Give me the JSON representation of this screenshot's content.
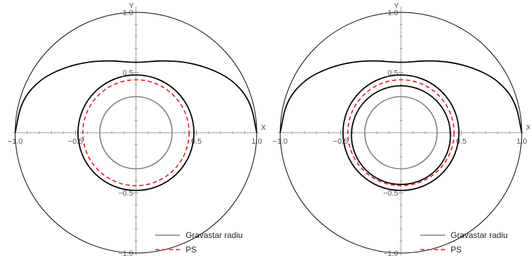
{
  "chart_data": [
    {
      "type": "line",
      "xlabel": "X",
      "ylabel": "Y",
      "xlim": [
        -1.0,
        1.0
      ],
      "ylim": [
        -1.0,
        1.0
      ],
      "xticks": [
        -1.0,
        -0.5,
        0.5,
        1.0
      ],
      "yticks": [
        -1.0,
        -0.5,
        0.5,
        1.0
      ],
      "xtick_labels": [
        "−1.0",
        "−0.5",
        "0.5",
        "1.0"
      ],
      "ytick_labels": [
        "−1.0",
        "−0.5",
        "0.5",
        "1.0"
      ],
      "legend": {
        "position": "bottom-right",
        "entries": [
          "Gravastar radiu",
          "PS"
        ]
      },
      "series": [
        {
          "name": "Gravastar radiu",
          "shape": "circle",
          "r": 0.3,
          "color": "#808080",
          "style": "solid"
        },
        {
          "name": "PS",
          "shape": "circle",
          "r": 0.44,
          "color": "#e31a1c",
          "style": "dashed"
        },
        {
          "shape": "circle",
          "r": 1.0,
          "color": "#000000",
          "style": "solid",
          "role": "boundary"
        },
        {
          "shape": "orbit",
          "color": "#000000",
          "style": "solid",
          "points": [
            [
              -1.0,
              0.0
            ],
            [
              -0.95,
              0.26
            ],
            [
              -0.8,
              0.44
            ],
            [
              -0.6,
              0.54
            ],
            [
              -0.4,
              0.59
            ],
            [
              -0.2,
              0.6
            ],
            [
              0.0,
              0.58
            ],
            [
              0.2,
              0.6
            ],
            [
              0.4,
              0.59
            ],
            [
              0.6,
              0.54
            ],
            [
              0.8,
              0.44
            ],
            [
              0.95,
              0.26
            ],
            [
              1.0,
              0.0
            ]
          ]
        },
        {
          "shape": "circle",
          "r": 0.48,
          "color": "#000000",
          "style": "solid"
        }
      ]
    },
    {
      "type": "line",
      "xlabel": "X",
      "ylabel": "Y",
      "xlim": [
        -1.0,
        1.0
      ],
      "ylim": [
        -1.0,
        1.0
      ],
      "xticks": [
        -1.0,
        -0.5,
        0.5,
        1.0
      ],
      "yticks": [
        -1.0,
        -0.5,
        0.5,
        1.0
      ],
      "xtick_labels": [
        "−1.0",
        "−0.5",
        "0.5",
        "1.0"
      ],
      "ytick_labels": [
        "−1.0",
        "−0.5",
        "0.5",
        "1.0"
      ],
      "legend": {
        "position": "bottom-right",
        "entries": [
          "Gravastar radiu",
          "PS"
        ]
      },
      "series": [
        {
          "name": "Gravastar radiu",
          "shape": "circle",
          "r": 0.3,
          "color": "#808080",
          "style": "solid"
        },
        {
          "name": "PS",
          "shape": "circle",
          "r": 0.44,
          "color": "#e31a1c",
          "style": "dashed"
        },
        {
          "shape": "circle",
          "r": 1.0,
          "color": "#000000",
          "style": "solid",
          "role": "boundary"
        },
        {
          "shape": "orbit",
          "color": "#000000",
          "style": "solid",
          "points": [
            [
              -1.0,
              0.0
            ],
            [
              -0.95,
              0.26
            ],
            [
              -0.8,
              0.44
            ],
            [
              -0.6,
              0.54
            ],
            [
              -0.4,
              0.59
            ],
            [
              -0.2,
              0.6
            ],
            [
              0.0,
              0.58
            ],
            [
              0.2,
              0.6
            ],
            [
              0.4,
              0.59
            ],
            [
              0.6,
              0.54
            ],
            [
              0.8,
              0.44
            ],
            [
              0.95,
              0.26
            ],
            [
              1.0,
              0.0
            ]
          ]
        },
        {
          "shape": "circle",
          "r": 0.48,
          "color": "#000000",
          "style": "solid"
        },
        {
          "shape": "circle",
          "r": 0.41,
          "cy": -0.02,
          "color": "#000000",
          "style": "solid"
        }
      ]
    }
  ]
}
